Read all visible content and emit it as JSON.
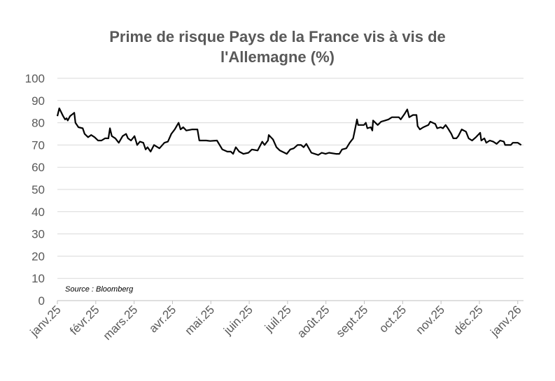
{
  "chart_data": {
    "type": "line",
    "title": "Prime de risque Pays de la France vis à vis de l'Allemagne (%)",
    "title_lines": [
      "Prime de risque Pays de la France vis à vis de",
      "l'Allemagne (%)"
    ],
    "xlabel": "",
    "ylabel": "",
    "annotation": "Source : Bloomberg",
    "ylim": [
      0,
      100
    ],
    "yticks": [
      0,
      10,
      20,
      30,
      40,
      50,
      60,
      70,
      80,
      90,
      100
    ],
    "xlim": [
      0,
      12.15
    ],
    "x_unit": "months since janv.25",
    "xtick_labels": [
      "janv.25",
      "févr.25",
      "mars.25",
      "avr.25",
      "mai.25",
      "juin.25",
      "juil.25",
      "août.25",
      "sept.25",
      "oct.25",
      "nov.25",
      "déc.25",
      "janv.26"
    ],
    "grid": "horizontal",
    "line_color": "#000000",
    "series": [
      {
        "name": "Prime de risque",
        "x": [
          0,
          0.05,
          0.15,
          0.2,
          0.24,
          0.27,
          0.33,
          0.44,
          0.47,
          0.55,
          0.66,
          0.71,
          0.77,
          0.8,
          0.88,
          0.97,
          1.06,
          1.15,
          1.24,
          1.33,
          1.37,
          1.42,
          1.51,
          1.6,
          1.7,
          1.79,
          1.84,
          1.92,
          2.01,
          2.08,
          2.15,
          2.24,
          2.3,
          2.35,
          2.43,
          2.52,
          2.66,
          2.79,
          2.88,
          2.97,
          3.06,
          3.16,
          3.21,
          3.28,
          3.36,
          3.52,
          3.65,
          3.7,
          3.88,
          3.98,
          4.16,
          4.3,
          4.43,
          4.52,
          4.58,
          4.65,
          4.74,
          4.85,
          4.98,
          5.07,
          5.22,
          5.34,
          5.4,
          5.49,
          5.51,
          5.62,
          5.71,
          5.8,
          5.98,
          6.07,
          6.16,
          6.26,
          6.35,
          6.42,
          6.49,
          6.62,
          6.8,
          6.89,
          6.99,
          7.08,
          7.26,
          7.35,
          7.42,
          7.53,
          7.62,
          7.71,
          7.77,
          7.81,
          7.84,
          7.99,
          8.04,
          8.08,
          8.17,
          8.21,
          8.23,
          8.35,
          8.44,
          8.54,
          8.63,
          8.72,
          8.9,
          8.95,
          9.05,
          9.12,
          9.17,
          9.27,
          9.36,
          9.39,
          9.45,
          9.54,
          9.67,
          9.72,
          9.85,
          9.9,
          9.99,
          10.05,
          10.12,
          10.18,
          10.27,
          10.32,
          10.4,
          10.45,
          10.54,
          10.65,
          10.72,
          10.81,
          10.91,
          11.02,
          11.05,
          11.13,
          11.18,
          11.27,
          11.36,
          11.45,
          11.54,
          11.64,
          11.67,
          11.82,
          11.87,
          12,
          12.09
        ],
        "y": [
          83,
          86.5,
          83,
          81.5,
          82,
          81,
          83,
          84.5,
          80,
          78,
          77.5,
          75,
          74,
          73.5,
          74.5,
          73.5,
          72,
          72,
          73,
          73,
          77.5,
          74,
          73,
          71,
          74,
          75,
          73,
          72,
          74,
          70,
          71.5,
          71,
          68,
          69,
          67,
          70,
          68.5,
          71,
          71.5,
          75,
          77,
          80,
          77,
          78,
          76.5,
          77,
          77,
          72,
          72,
          71.8,
          72,
          68,
          67,
          67,
          66,
          69,
          67,
          66,
          66.5,
          68,
          67.5,
          71.5,
          70,
          72,
          74.5,
          72.5,
          69,
          67.5,
          66,
          68,
          68.5,
          70,
          70,
          69,
          70.5,
          66.5,
          65.5,
          66.5,
          66,
          66.5,
          66,
          66,
          68,
          68.5,
          71,
          73,
          78,
          81.5,
          79,
          79,
          80,
          77.5,
          78,
          76.5,
          81,
          79,
          80.5,
          81,
          81.5,
          82.5,
          82.5,
          81.5,
          84,
          86,
          82.5,
          83.5,
          83.5,
          78.5,
          77,
          78,
          79,
          80.5,
          79.5,
          77.5,
          78,
          77.5,
          79,
          77.5,
          75,
          73,
          73,
          74,
          77,
          76,
          73,
          72,
          73.5,
          75.5,
          72,
          73,
          71,
          72,
          71.5,
          70.5,
          72,
          71.5,
          70,
          70,
          71,
          71,
          70
        ]
      }
    ]
  }
}
